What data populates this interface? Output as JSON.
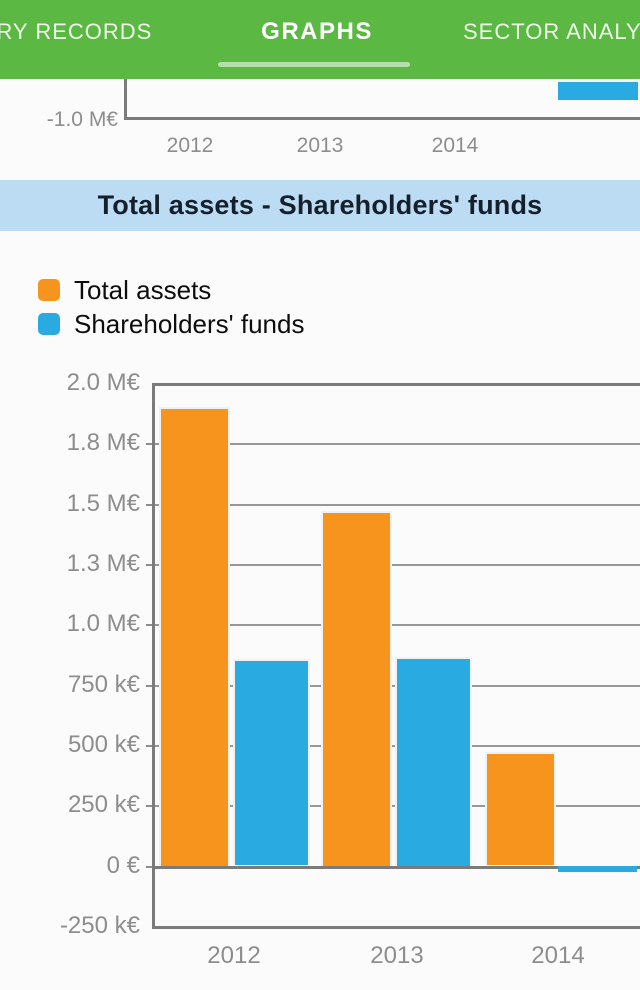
{
  "header": {
    "tabs": [
      {
        "label": "TRY RECORDS",
        "active": false
      },
      {
        "label": "GRAPHS",
        "active": true
      },
      {
        "label": "SECTOR ANALYSIS",
        "active": false
      }
    ]
  },
  "prev_chart": {
    "y_axis_label": "-1.0 M€",
    "x_labels": [
      "2012",
      "2013",
      "2014"
    ],
    "fragment_series": "Shareholders' funds",
    "fragment_color": "#29abe2"
  },
  "banner": {
    "title": "Total assets - Shareholders' funds"
  },
  "legend": [
    {
      "label": "Total assets",
      "color": "#f7941e"
    },
    {
      "label": "Shareholders' funds",
      "color": "#29abe2"
    }
  ],
  "chart_data": {
    "type": "bar",
    "title": "Total assets - Shareholders' funds",
    "categories": [
      "2012",
      "2013",
      "2014"
    ],
    "series": [
      {
        "name": "Total assets",
        "color": "#f7941e",
        "values_meur": [
          1.9,
          1.47,
          0.47
        ]
      },
      {
        "name": "Shareholders' funds",
        "color": "#29abe2",
        "values_meur": [
          0.855,
          0.865,
          -0.025
        ]
      }
    ],
    "unit": "M€",
    "y_ticks": [
      "2.0 M€",
      "1.8 M€",
      "1.5 M€",
      "1.3 M€",
      "1.0 M€",
      "750 k€",
      "500 k€",
      "250 k€",
      "0 €",
      "-250 k€"
    ],
    "y_tick_values_meur": [
      2.0,
      1.75,
      1.5,
      1.25,
      1.0,
      0.75,
      0.5,
      0.25,
      0,
      -0.25
    ],
    "ylim_meur": [
      -0.25,
      2.0
    ],
    "grid": true,
    "legend_position": "top-left",
    "note": "chart clipped at right screen edge"
  },
  "colors": {
    "page_bg": "#fbfbfb",
    "header_green": "#5bb843",
    "tab_text": "#eef7ea",
    "active_underline": "rgba(255,255,255,0.55)",
    "banner_bg": "#bcdcf4",
    "banner_text": "#16202c",
    "orange": "#f7941e",
    "blue": "#29abe2",
    "axis_dark": "#7b7b7b",
    "grid_gray": "#979797",
    "label_gray": "#8d8d8d",
    "legend_text": "#0d0d0d"
  }
}
